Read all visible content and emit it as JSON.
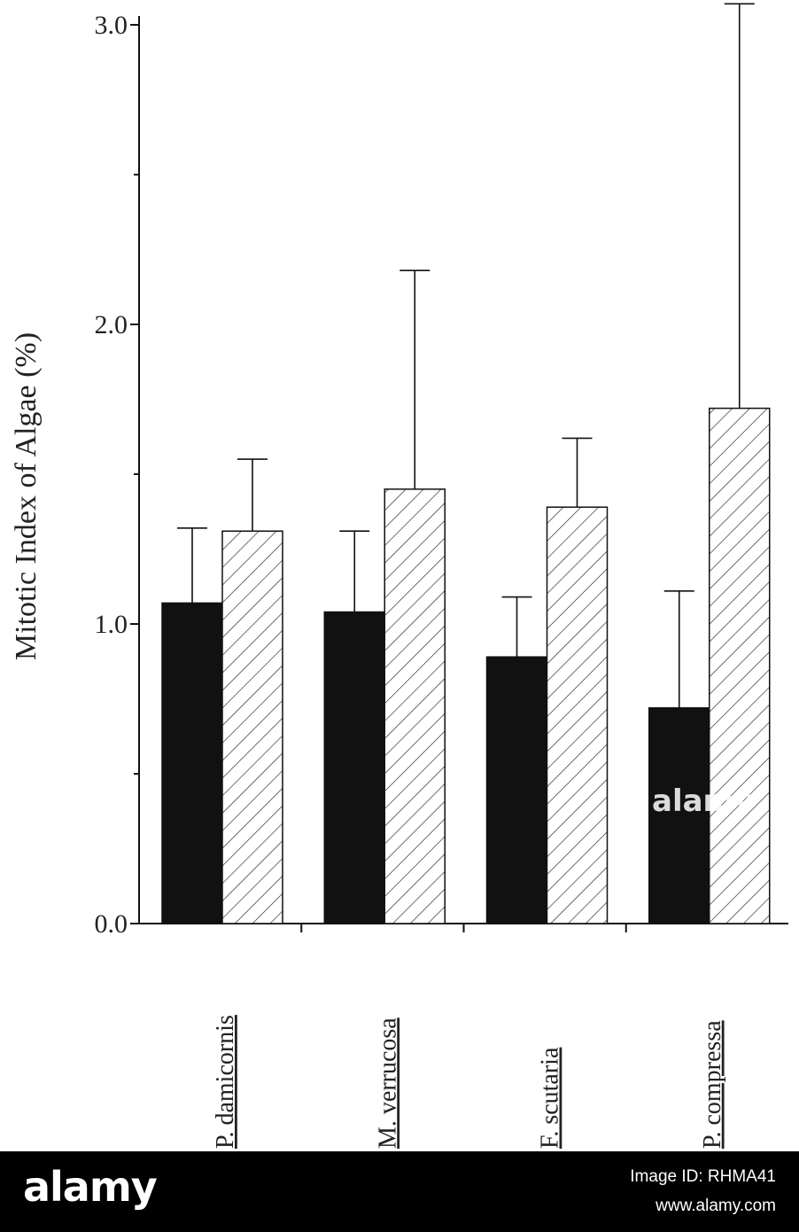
{
  "chart_data": {
    "type": "bar",
    "title": "",
    "xlabel": "",
    "ylabel": "Mitotic Index of Algae (%)",
    "ylim": [
      0,
      3.0
    ],
    "yticks": [
      "0.0",
      "1.0",
      "2.0",
      "3.0"
    ],
    "grid": false,
    "legend": "none",
    "categories": [
      "P. damicornis",
      "M. verrucosa",
      "F. scutaria",
      "P. compressa"
    ],
    "series": [
      {
        "fill": "solid",
        "color": "#111111",
        "values": [
          1.07,
          1.04,
          0.89,
          0.72
        ],
        "errors": [
          0.25,
          0.27,
          0.2,
          0.39
        ]
      },
      {
        "fill": "hatched",
        "color": "#ffffff",
        "values": [
          1.31,
          1.45,
          1.39,
          1.72
        ],
        "errors": [
          0.24,
          0.73,
          0.23,
          1.35
        ]
      }
    ]
  },
  "watermark": {
    "logo": "alamy",
    "overlay": "alamy",
    "image_id": "Image ID: RHMA41",
    "url": "www.alamy.com"
  }
}
